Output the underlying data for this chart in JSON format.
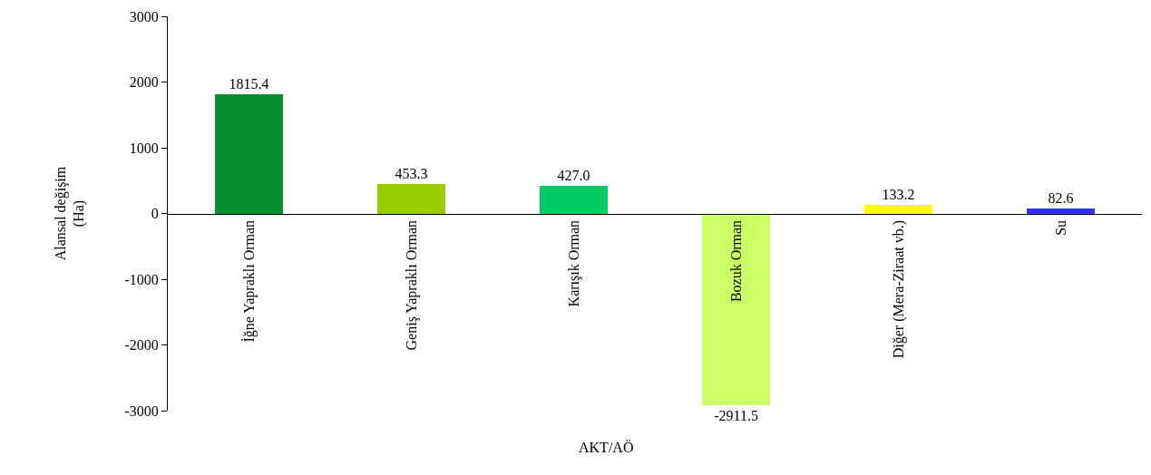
{
  "chart_data": {
    "type": "bar",
    "categories": [
      "İğne Yapraklı Orman",
      "Geniş Yapraklı Orman",
      "Karışık Orman",
      "Bozuk Orman",
      "Diğer (Mera-Ziraat vb.)",
      "Su"
    ],
    "values": [
      1815.4,
      453.3,
      427.0,
      -2911.5,
      133.2,
      82.6
    ],
    "value_labels": [
      "1815.4",
      "453.3",
      "427.0",
      "-2911.5",
      "133.2",
      "82.6"
    ],
    "colors": [
      "#068f31",
      "#99cc00",
      "#00cc66",
      "#ccff66",
      "#ffff00",
      "#3333ee"
    ],
    "xlabel": "AKT/AÖ",
    "ylabel": "Alansal değişim\n(Ha)",
    "ylim": [
      -3000,
      3000
    ],
    "yticks": [
      -3000,
      -2000,
      -1000,
      0,
      1000,
      2000,
      3000
    ],
    "grid": false
  }
}
